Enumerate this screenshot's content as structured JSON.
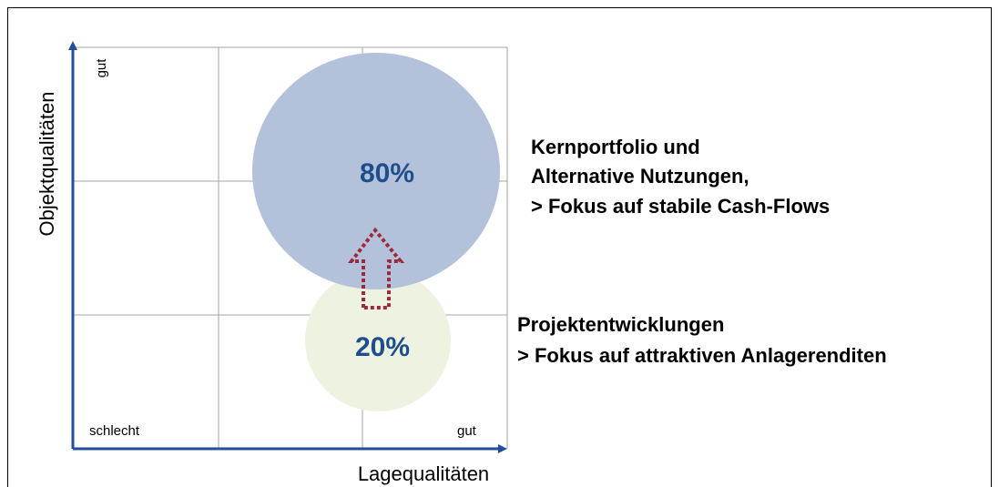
{
  "axes": {
    "y_label": "Objektqualitäten",
    "x_label": "Lagequalitäten",
    "y_high": "gut",
    "x_low": "schlecht",
    "x_high": "gut"
  },
  "bubbles": [
    {
      "label": "80%"
    },
    {
      "label": "20%"
    }
  ],
  "annotations": [
    {
      "lines": [
        "Kernportfolio und",
        "Alternative Nutzungen,",
        "> Fokus auf stabile Cash-Flows"
      ]
    },
    {
      "lines": [
        "Projektentwicklungen",
        "> Fokus auf attraktiven Anlagerenditen"
      ]
    }
  ]
}
